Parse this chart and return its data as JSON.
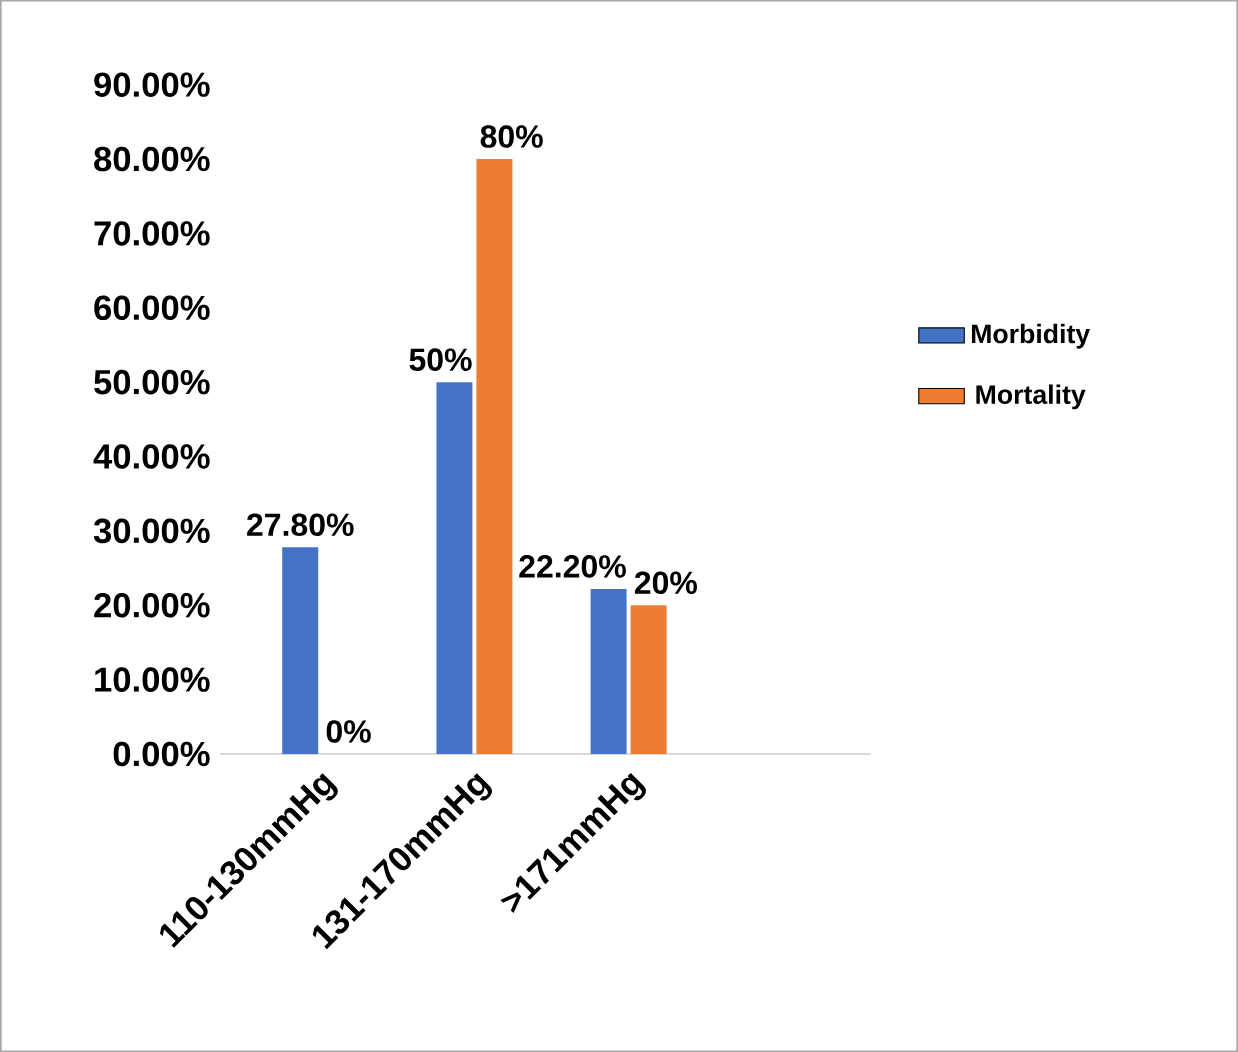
{
  "chart_data": {
    "type": "bar",
    "categories": [
      "110-130mmHg",
      "131-170mmHg",
      ">171mmHg"
    ],
    "series": [
      {
        "name": "Morbidity",
        "color": "#4472c4",
        "values": [
          27.8,
          50,
          22.2
        ],
        "value_labels": [
          "27.80%",
          "50%",
          "22.20%"
        ]
      },
      {
        "name": "Mortality",
        "color": "#ed7d31",
        "values": [
          0,
          80,
          20
        ],
        "value_labels": [
          "0%",
          "80%",
          "20%"
        ]
      }
    ],
    "ylim": [
      0,
      90
    ],
    "yticks": [
      {
        "value": 0,
        "label": "0.00%"
      },
      {
        "value": 10,
        "label": "10.00%"
      },
      {
        "value": 20,
        "label": "20.00%"
      },
      {
        "value": 30,
        "label": "30.00%"
      },
      {
        "value": 40,
        "label": "40.00%"
      },
      {
        "value": 50,
        "label": "50.00%"
      },
      {
        "value": 60,
        "label": "60.00%"
      },
      {
        "value": 70,
        "label": "70.00%"
      },
      {
        "value": 80,
        "label": "80.00%"
      },
      {
        "value": 90,
        "label": "90.00%"
      }
    ],
    "grid": false,
    "legend": "right"
  }
}
